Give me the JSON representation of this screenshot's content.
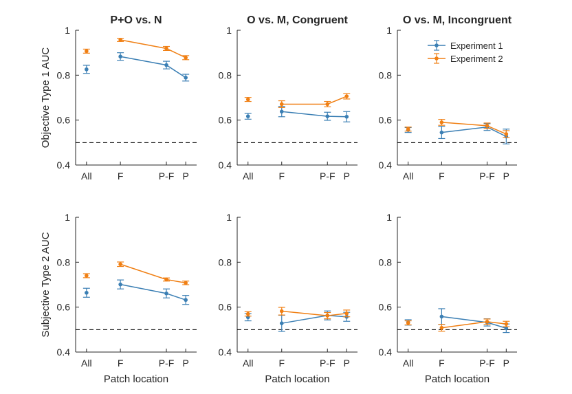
{
  "colors": {
    "exp1": "#3b7fb4",
    "exp2": "#f07f13",
    "axis": "#262626",
    "chance": "#000000"
  },
  "chart_data": {
    "type": "line",
    "x_categories": [
      "All",
      "F",
      "P-F",
      "P"
    ],
    "ylim": [
      0.4,
      1.0
    ],
    "yticks": [
      "0.4",
      "0.6",
      "0.8",
      "1"
    ],
    "chance_level": 0.5,
    "xlabel": "Patch location",
    "row_labels": [
      "Objective Type 1 AUC",
      "Subjective Type 2 AUC"
    ],
    "legend": {
      "placement": "top-right",
      "entries": [
        "Experiment 1",
        "Experiment 2"
      ]
    },
    "panels": [
      {
        "title": "P+O vs. N",
        "row": 0,
        "col": 0,
        "series": [
          {
            "name": "Experiment 1",
            "values": [
              0.826,
              0.883,
              0.845,
              0.789
            ],
            "errors": [
              0.018,
              0.017,
              0.017,
              0.015
            ]
          },
          {
            "name": "Experiment 2",
            "values": [
              0.907,
              0.957,
              0.919,
              0.878
            ],
            "errors": [
              0.009,
              0.007,
              0.009,
              0.009
            ]
          }
        ]
      },
      {
        "title": "O vs. M, Congruent",
        "row": 0,
        "col": 1,
        "series": [
          {
            "name": "Experiment 1",
            "values": [
              0.617,
              0.638,
              0.617,
              0.615
            ],
            "errors": [
              0.013,
              0.023,
              0.018,
              0.023
            ]
          },
          {
            "name": "Experiment 2",
            "values": [
              0.692,
              0.671,
              0.671,
              0.706
            ],
            "errors": [
              0.009,
              0.015,
              0.012,
              0.012
            ]
          }
        ]
      },
      {
        "title": "O vs. M, Incongruent",
        "row": 0,
        "col": 2,
        "series": [
          {
            "name": "Experiment 1",
            "values": [
              0.556,
              0.545,
              0.569,
              0.527
            ],
            "errors": [
              0.011,
              0.027,
              0.015,
              0.033
            ]
          },
          {
            "name": "Experiment 2",
            "values": [
              0.56,
              0.59,
              0.575,
              0.538
            ],
            "errors": [
              0.009,
              0.013,
              0.012,
              0.015
            ]
          }
        ]
      },
      {
        "title": "",
        "row": 1,
        "col": 0,
        "series": [
          {
            "name": "Experiment 1",
            "values": [
              0.664,
              0.701,
              0.661,
              0.632
            ],
            "errors": [
              0.02,
              0.02,
              0.02,
              0.02
            ]
          },
          {
            "name": "Experiment 2",
            "values": [
              0.74,
              0.791,
              0.723,
              0.708
            ],
            "errors": [
              0.009,
              0.01,
              0.007,
              0.008
            ]
          }
        ]
      },
      {
        "title": "",
        "row": 1,
        "col": 1,
        "series": [
          {
            "name": "Experiment 1",
            "values": [
              0.555,
              0.528,
              0.563,
              0.557
            ],
            "errors": [
              0.016,
              0.036,
              0.02,
              0.02
            ]
          },
          {
            "name": "Experiment 2",
            "values": [
              0.57,
              0.582,
              0.562,
              0.572
            ],
            "errors": [
              0.01,
              0.017,
              0.014,
              0.015
            ]
          }
        ]
      },
      {
        "title": "",
        "row": 1,
        "col": 2,
        "series": [
          {
            "name": "Experiment 1",
            "values": [
              0.532,
              0.558,
              0.532,
              0.506
            ],
            "errors": [
              0.012,
              0.035,
              0.016,
              0.019
            ]
          },
          {
            "name": "Experiment 2",
            "values": [
              0.53,
              0.508,
              0.535,
              0.525
            ],
            "errors": [
              0.009,
              0.015,
              0.012,
              0.012
            ]
          }
        ]
      }
    ]
  }
}
